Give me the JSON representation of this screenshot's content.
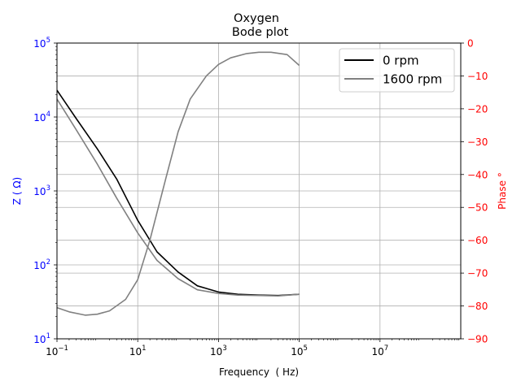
{
  "chart_data": {
    "type": "line",
    "title": "Oxygen\n  Bode plot",
    "title_lines": [
      "Oxygen",
      "  Bode plot"
    ],
    "xlabel": "Frequency  ( Hz)",
    "ylabel_left": "Z ( Ω)",
    "ylabel_right": "Phase °",
    "x_scale": "log",
    "y_left_scale": "log",
    "xlim": [
      0.1,
      1000000000
    ],
    "ylim_left": [
      10,
      100000
    ],
    "ylim_right": [
      -90,
      0
    ],
    "x_ticks": [
      {
        "value": 0.1,
        "base": "10",
        "exp": "−1"
      },
      {
        "value": 10,
        "base": "10",
        "exp": "1"
      },
      {
        "value": 1000,
        "base": "10",
        "exp": "3"
      },
      {
        "value": 100000,
        "base": "10",
        "exp": "5"
      },
      {
        "value": 10000000,
        "base": "10",
        "exp": "7"
      }
    ],
    "y_left_ticks": [
      {
        "value": 10,
        "base": "10",
        "exp": "1"
      },
      {
        "value": 100,
        "base": "10",
        "exp": "2"
      },
      {
        "value": 1000,
        "base": "10",
        "exp": "3"
      },
      {
        "value": 10000,
        "base": "10",
        "exp": "4"
      },
      {
        "value": 100000,
        "base": "10",
        "exp": "5"
      }
    ],
    "y_right_ticks": [
      "0",
      "−10",
      "−20",
      "−30",
      "−40",
      "−50",
      "−60",
      "−70",
      "−80",
      "−90"
    ],
    "grid": true,
    "legend_position": "top-right",
    "colors": {
      "left_axis": "#0000ff",
      "right_axis": "#ff0000",
      "series_0rpm": "#000000",
      "series_1600rpm": "#808080",
      "grid": "#b0b0b0"
    },
    "series": [
      {
        "name": "0 rpm",
        "axis": "left",
        "quantity": "Z",
        "color": "#000000",
        "x": [
          0.1,
          0.3,
          1,
          3,
          10,
          30,
          100,
          300,
          1000,
          3000,
          10000,
          30000,
          100000
        ],
        "y": [
          23000,
          9500,
          3700,
          1450,
          400,
          150,
          80,
          52,
          43,
          40,
          39,
          38.5,
          40
        ]
      },
      {
        "name": "1600 rpm",
        "axis": "left",
        "quantity": "Z",
        "color": "#808080",
        "x": [
          0.1,
          0.3,
          1,
          3,
          10,
          30,
          100,
          300,
          1000,
          3000,
          10000,
          30000,
          100000
        ],
        "y": [
          17500,
          6700,
          2300,
          800,
          270,
          115,
          65,
          46,
          41,
          39,
          38.5,
          38,
          40
        ]
      },
      {
        "name": "",
        "axis": "right",
        "quantity": "Phase",
        "color": "#808080",
        "x": [
          0.1,
          0.2,
          0.5,
          1,
          2,
          5,
          10,
          20,
          50,
          100,
          200,
          500,
          1000,
          2000,
          5000,
          10000,
          20000,
          50000,
          100000
        ],
        "y": [
          -80.5,
          -81.8,
          -82.8,
          -82.5,
          -81.5,
          -78,
          -72,
          -60,
          -41,
          -27,
          -17,
          -10,
          -6.5,
          -4.5,
          -3.2,
          -2.8,
          -2.8,
          -3.5,
          -6.8
        ]
      }
    ]
  },
  "legend": {
    "items": [
      {
        "label": "0 rpm",
        "color": "#000000"
      },
      {
        "label": "1600 rpm",
        "color": "#808080"
      }
    ]
  }
}
